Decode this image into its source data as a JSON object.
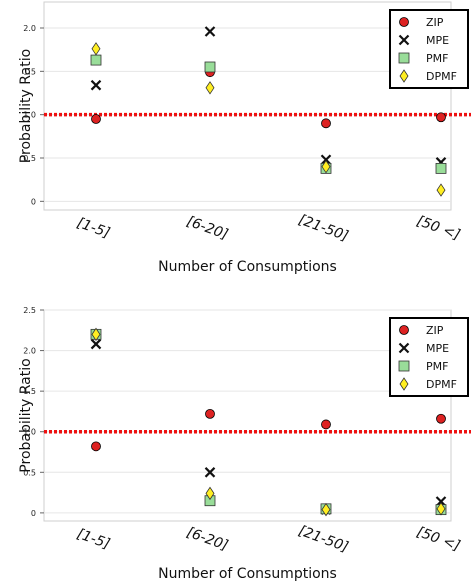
{
  "chart_data": [
    {
      "type": "scatter",
      "categories": [
        "[1-5]",
        "[6-20]",
        "[21-50]",
        "[50 <]"
      ],
      "xlabel": "Number of Consumptions",
      "ylabel": "Probability Ratio",
      "ylim": [
        -0.1,
        2.3
      ],
      "yticks": [
        "0",
        "0.5",
        "1.0",
        "1.5",
        "2.0"
      ],
      "reference_line": {
        "y": 1.0,
        "color": "#ee1111",
        "style": "dotted"
      },
      "grid": true,
      "legend": "top-right",
      "series": [
        {
          "name": "ZIP",
          "marker": "circle",
          "color": "#dd2222",
          "values": [
            0.95,
            1.49,
            0.9,
            0.97
          ]
        },
        {
          "name": "MPE",
          "marker": "x",
          "color": "#111111",
          "values": [
            1.34,
            1.96,
            0.48,
            0.45
          ]
        },
        {
          "name": "PMF",
          "marker": "square",
          "color": "#99dd99",
          "values": [
            1.63,
            1.55,
            0.38,
            0.38
          ]
        },
        {
          "name": "DPMF",
          "marker": "diamond",
          "color": "#ffee22",
          "values": [
            1.76,
            1.31,
            0.4,
            0.13
          ]
        }
      ]
    },
    {
      "type": "scatter",
      "categories": [
        "[1-5]",
        "[6-20]",
        "[21-50]",
        "[50 <]"
      ],
      "xlabel": "Number of Consumptions",
      "ylabel": "Probability Ratio",
      "ylim": [
        -0.1,
        2.5
      ],
      "yticks": [
        "0",
        "0.5",
        "1.0",
        "1.5",
        "2.0",
        "2.5"
      ],
      "reference_line": {
        "y": 1.0,
        "color": "#ee1111",
        "style": "dotted"
      },
      "grid": true,
      "legend": "top-right",
      "series": [
        {
          "name": "ZIP",
          "marker": "circle",
          "color": "#dd2222",
          "values": [
            0.82,
            1.22,
            1.09,
            1.16
          ]
        },
        {
          "name": "MPE",
          "marker": "x",
          "color": "#111111",
          "values": [
            2.08,
            0.5,
            0.04,
            0.14
          ]
        },
        {
          "name": "PMF",
          "marker": "square",
          "color": "#99dd99",
          "values": [
            2.2,
            0.15,
            0.05,
            0.04
          ]
        },
        {
          "name": "DPMF",
          "marker": "diamond",
          "color": "#ffee22",
          "values": [
            2.2,
            0.24,
            0.04,
            0.05
          ]
        }
      ]
    }
  ]
}
